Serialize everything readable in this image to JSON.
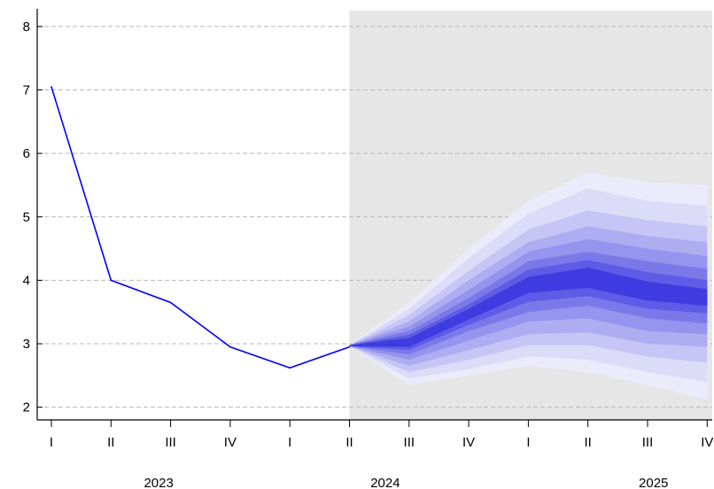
{
  "chart_data": {
    "type": "area",
    "title": "",
    "xlabel": "",
    "ylabel": "",
    "ylim": [
      1.8,
      8.25
    ],
    "yticks": [
      2,
      3,
      4,
      5,
      6,
      7,
      8
    ],
    "ytick_labels": [
      "2",
      "3",
      "4",
      "5",
      "6",
      "7",
      "8"
    ],
    "categories": [
      "2023Q1",
      "2023Q2",
      "2023Q3",
      "2023Q4",
      "2024Q1",
      "2024Q2",
      "2024Q3",
      "2024Q4",
      "2025Q1",
      "2025Q2",
      "2025Q3",
      "2025Q4"
    ],
    "xtick_labels": [
      "I",
      "II",
      "III",
      "IV",
      "I",
      "II",
      "III",
      "IV",
      "I",
      "II",
      "III",
      "IV"
    ],
    "year_labels": [
      {
        "label": "2023",
        "center_index": 1.8
      },
      {
        "label": "2024",
        "center_index": 5.6
      },
      {
        "label": "2025",
        "center_index": 10.1
      }
    ],
    "grid": true,
    "forecast_shading_start": "2024Q2",
    "forecast_shading_color": "#e6e6e6",
    "series": [
      {
        "values": [
          7.05,
          4.0,
          3.65,
          2.95,
          2.62,
          2.95,
          null,
          null,
          null,
          null,
          null,
          null
        ],
        "color": "#0000ff"
      }
    ],
    "fan_bands": [
      {
        "color": "#ecebfb",
        "upper": [
          null,
          null,
          null,
          null,
          null,
          2.98,
          3.65,
          4.5,
          5.25,
          5.7,
          5.55,
          5.5
        ],
        "lower": [
          null,
          null,
          null,
          null,
          null,
          2.96,
          2.35,
          2.5,
          2.65,
          2.55,
          2.35,
          2.12
        ]
      },
      {
        "color": "#dcdcf8",
        "upper": [
          null,
          null,
          null,
          null,
          null,
          2.98,
          3.55,
          4.35,
          5.05,
          5.45,
          5.25,
          5.18
        ],
        "lower": [
          null,
          null,
          null,
          null,
          null,
          2.96,
          2.45,
          2.6,
          2.8,
          2.75,
          2.55,
          2.4
        ]
      },
      {
        "color": "#c6c5f5",
        "upper": [
          null,
          null,
          null,
          null,
          null,
          2.98,
          3.45,
          4.15,
          4.8,
          5.1,
          4.95,
          4.85
        ],
        "lower": [
          null,
          null,
          null,
          null,
          null,
          2.96,
          2.55,
          2.75,
          2.98,
          2.98,
          2.8,
          2.7
        ]
      },
      {
        "color": "#aeadf2",
        "upper": [
          null,
          null,
          null,
          null,
          null,
          2.98,
          3.35,
          4.0,
          4.6,
          4.85,
          4.7,
          4.6
        ],
        "lower": [
          null,
          null,
          null,
          null,
          null,
          2.96,
          2.65,
          2.9,
          3.15,
          3.18,
          3.0,
          2.95
        ]
      },
      {
        "color": "#9594ee",
        "upper": [
          null,
          null,
          null,
          null,
          null,
          2.98,
          3.27,
          3.85,
          4.45,
          4.65,
          4.5,
          4.38
        ],
        "lower": [
          null,
          null,
          null,
          null,
          null,
          2.96,
          2.75,
          3.05,
          3.35,
          3.4,
          3.2,
          3.15
        ]
      },
      {
        "color": "#7b79ea",
        "upper": [
          null,
          null,
          null,
          null,
          null,
          2.98,
          3.2,
          3.72,
          4.3,
          4.45,
          4.3,
          4.18
        ],
        "lower": [
          null,
          null,
          null,
          null,
          null,
          2.96,
          2.83,
          3.2,
          3.5,
          3.6,
          3.4,
          3.32
        ]
      },
      {
        "color": "#5e5ce6",
        "upper": [
          null,
          null,
          null,
          null,
          null,
          2.98,
          3.14,
          3.62,
          4.17,
          4.32,
          4.13,
          4.0
        ],
        "lower": [
          null,
          null,
          null,
          null,
          null,
          2.96,
          2.9,
          3.3,
          3.66,
          3.75,
          3.55,
          3.48
        ]
      },
      {
        "color": "#3e3be1",
        "upper": [
          null,
          null,
          null,
          null,
          null,
          2.98,
          3.09,
          3.55,
          4.05,
          4.2,
          3.98,
          3.86
        ],
        "lower": [
          null,
          null,
          null,
          null,
          null,
          2.96,
          2.95,
          3.38,
          3.8,
          3.88,
          3.68,
          3.6
        ]
      }
    ]
  }
}
